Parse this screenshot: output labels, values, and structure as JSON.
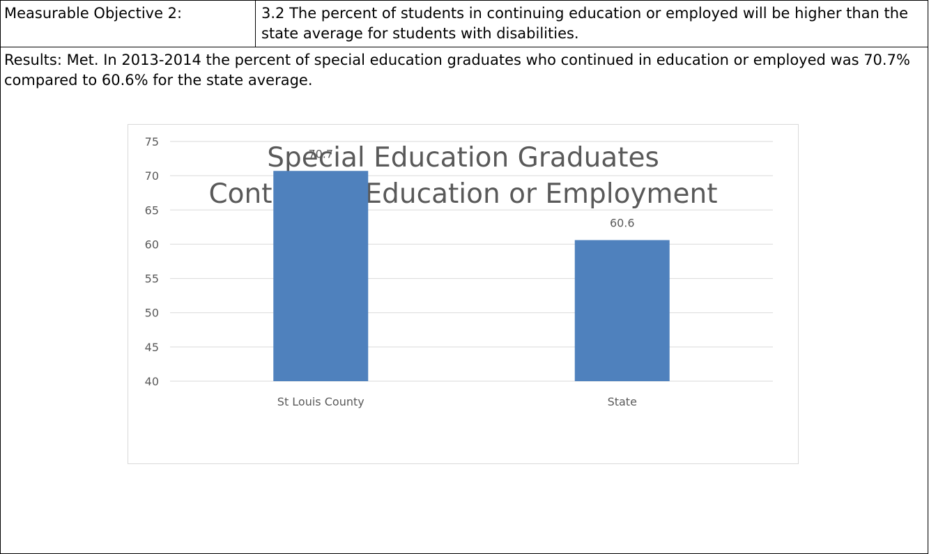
{
  "objective": {
    "label": "Measurable Objective 2:",
    "text": "3.2 The percent of students in continuing education or employed will be higher than the state average for students with disabilities."
  },
  "results": {
    "text": "Results: Met. In 2013-2014 the percent of special education graduates who continued in education or employed was 70.7% compared to 60.6% for the state average."
  },
  "colors": {
    "bar": "#4f81bd",
    "grid": "#d9d9d9",
    "text": "#595959"
  },
  "chart_data": {
    "type": "bar",
    "title_line1": "Special Education Graduates",
    "title_line2": "Continuing Education or Employment",
    "categories": [
      "St Louis County",
      "State"
    ],
    "values": [
      70.7,
      60.6
    ],
    "data_labels": [
      "70.7",
      "60.6"
    ],
    "ylim": [
      40,
      75
    ],
    "yticks": [
      40,
      45,
      50,
      55,
      60,
      65,
      70,
      75
    ],
    "grid": true,
    "legend": "none"
  }
}
